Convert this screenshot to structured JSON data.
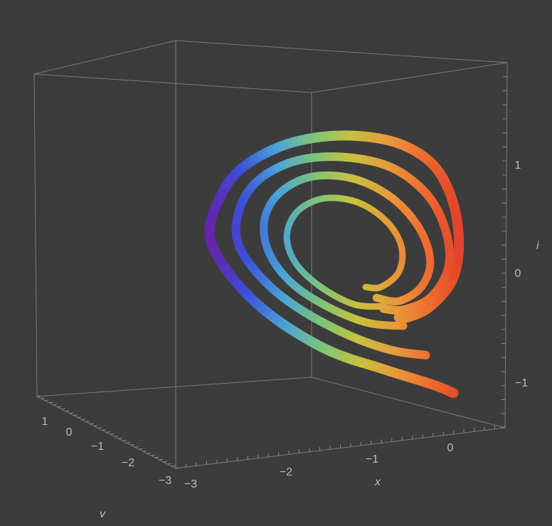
{
  "chart_data": {
    "type": "line",
    "subtype": "3d-parametric-curve",
    "title": "",
    "axes": {
      "x": {
        "label": "x",
        "ticks": [
          "−3",
          "−2",
          "−1",
          "0"
        ]
      },
      "v": {
        "label": "v",
        "ticks": [
          "1",
          "0",
          "−1",
          "−2",
          "−3"
        ]
      },
      "i": {
        "label": "i",
        "ticks": [
          "1",
          "0",
          "−1"
        ]
      }
    },
    "xlim": [
      -3.2,
      0.6
    ],
    "vlim": [
      -3.2,
      1.5
    ],
    "ilim": [
      -1.4,
      1.7
    ],
    "box": true,
    "grid": false,
    "colormap": [
      "#6a1fa8",
      "#3b4fd8",
      "#4aa3d8",
      "#7cc47a",
      "#c8c23e",
      "#e89a3a",
      "#ee6a2e",
      "#e03a2a"
    ],
    "background": "#3c3c3c",
    "tube_width": "thick",
    "series": [
      {
        "x": [
          0.06,
          -0.18,
          -0.72,
          -1.35,
          -1.98,
          -2.42,
          -2.66,
          -2.55,
          -2.3,
          -1.8,
          -1.2,
          -0.6,
          -0.18,
          0.04,
          0.12,
          0.05,
          -0.2,
          -0.45,
          -0.55
        ],
        "i": [
          -1.1,
          -1.02,
          -0.88,
          -0.7,
          -0.38,
          -0.02,
          0.35,
          0.7,
          0.98,
          1.2,
          1.28,
          1.22,
          1.02,
          0.7,
          0.3,
          -0.05,
          -0.3,
          -0.4,
          -0.4
        ]
      },
      {
        "x": [
          -0.25,
          -0.65,
          -1.15,
          -1.7,
          -2.1,
          -2.35,
          -2.32,
          -2.1,
          -1.68,
          -1.15,
          -0.62,
          -0.22,
          -0.02,
          0.0,
          -0.2,
          -0.5,
          -0.72
        ],
        "i": [
          -0.75,
          -0.7,
          -0.55,
          -0.3,
          -0.02,
          0.3,
          0.62,
          0.88,
          1.05,
          1.08,
          0.98,
          0.72,
          0.38,
          0.05,
          -0.22,
          -0.33,
          -0.32
        ]
      },
      {
        "x": [
          -0.5,
          -0.9,
          -1.35,
          -1.75,
          -2.0,
          -2.05,
          -1.88,
          -1.52,
          -1.05,
          -0.62,
          -0.32,
          -0.2,
          -0.3,
          -0.55,
          -0.8
        ],
        "i": [
          -0.48,
          -0.45,
          -0.3,
          -0.08,
          0.2,
          0.5,
          0.75,
          0.9,
          0.88,
          0.7,
          0.42,
          0.12,
          -0.12,
          -0.25,
          -0.22
        ]
      },
      {
        "x": [
          -0.72,
          -1.05,
          -1.42,
          -1.7,
          -1.8,
          -1.68,
          -1.38,
          -1.0,
          -0.68,
          -0.52,
          -0.55,
          -0.75,
          -0.92
        ],
        "i": [
          -0.3,
          -0.28,
          -0.12,
          0.1,
          0.35,
          0.58,
          0.7,
          0.66,
          0.48,
          0.25,
          0.02,
          -0.12,
          -0.12
        ]
      }
    ]
  }
}
